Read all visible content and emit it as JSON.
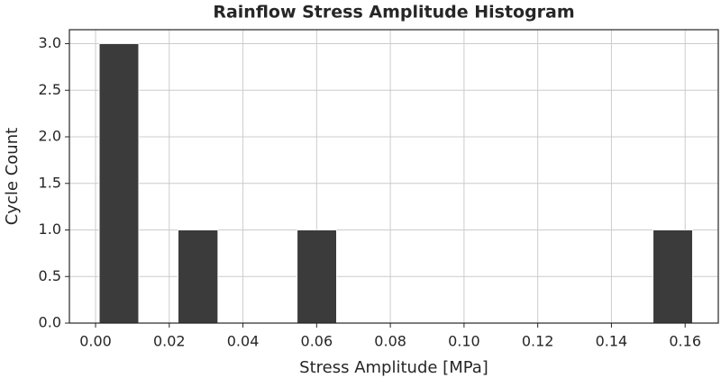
{
  "chart_data": {
    "type": "histogram",
    "title": "Rainflow Stress Amplitude Histogram",
    "x_label": "Stress Amplitude [MPa]",
    "y_label": "Cycle Count",
    "bins": [
      0.001,
      0.0117,
      0.0224,
      0.0332,
      0.0439,
      0.0547,
      0.0654,
      0.0761,
      0.0869,
      0.0976,
      0.1083,
      0.1191,
      0.1298,
      0.1405,
      0.1513,
      0.162
    ],
    "values": [
      3,
      0,
      1,
      0,
      0,
      1,
      0,
      0,
      0,
      0,
      0,
      0,
      0,
      0,
      1
    ],
    "color": "#3b3b3b",
    "xlim": [
      -0.0071,
      0.169
    ],
    "ylim": [
      0,
      3.15
    ],
    "xticks": [
      {
        "value": 0,
        "label": "0.00"
      },
      {
        "value": 0.02,
        "label": "0.02"
      },
      {
        "value": 0.04,
        "label": "0.04"
      },
      {
        "value": 0.06,
        "label": "0.06"
      },
      {
        "value": 0.08,
        "label": "0.08"
      },
      {
        "value": 0.1,
        "label": "0.10"
      },
      {
        "value": 0.12,
        "label": "0.12"
      },
      {
        "value": 0.14,
        "label": "0.14"
      },
      {
        "value": 0.16,
        "label": "0.16"
      }
    ],
    "yticks": [
      {
        "value": 0,
        "label": "0.0"
      },
      {
        "value": 0.5,
        "label": "0.5"
      },
      {
        "value": 1,
        "label": "1.0"
      },
      {
        "value": 1.5,
        "label": "1.5"
      },
      {
        "value": 2,
        "label": "2.0"
      },
      {
        "value": 2.5,
        "label": "2.5"
      },
      {
        "value": 3,
        "label": "3.0"
      }
    ],
    "grid": true
  }
}
